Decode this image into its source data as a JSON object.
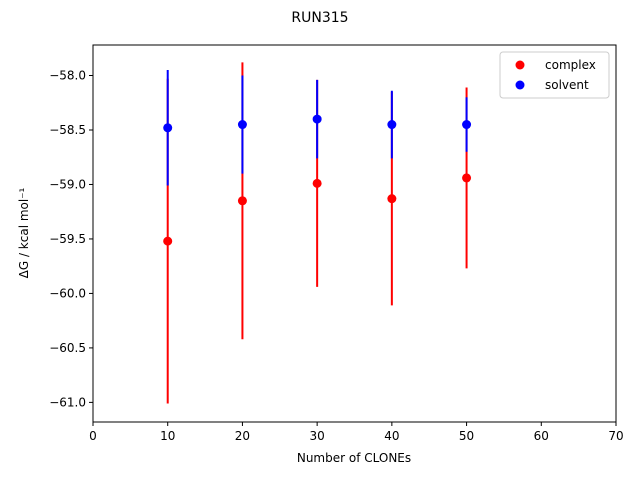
{
  "chart_data": {
    "type": "scatter",
    "title": "RUN315",
    "xlabel": "Number of CLONEs",
    "ylabel": "ΔG / kcal mol⁻¹",
    "xlim": [
      0,
      70
    ],
    "ylim": [
      -61.18,
      -57.72
    ],
    "xticks": [
      0,
      10,
      20,
      30,
      40,
      50,
      60,
      70
    ],
    "yticks": [
      -61.0,
      -60.5,
      -60.0,
      -59.5,
      -59.0,
      -58.5,
      -58.0
    ],
    "xtick_labels": [
      "0",
      "10",
      "20",
      "30",
      "40",
      "50",
      "60",
      "70"
    ],
    "ytick_labels": [
      "−61.0",
      "−60.5",
      "−60.0",
      "−59.5",
      "−59.0",
      "−58.5",
      "−58.0"
    ],
    "legend_position": "top-right",
    "grid": false,
    "series": [
      {
        "name": "complex",
        "color": "#ff0000",
        "x": [
          10,
          20,
          30,
          40,
          50
        ],
        "y": [
          -59.52,
          -59.15,
          -58.99,
          -59.13,
          -58.94
        ],
        "yerr": [
          1.49,
          1.27,
          0.95,
          0.98,
          0.83
        ]
      },
      {
        "name": "solvent",
        "color": "#0000ff",
        "x": [
          10,
          20,
          30,
          40,
          50
        ],
        "y": [
          -58.48,
          -58.45,
          -58.4,
          -58.45,
          -58.45
        ],
        "yerr": [
          0.53,
          0.45,
          0.36,
          0.31,
          0.25
        ]
      }
    ]
  }
}
